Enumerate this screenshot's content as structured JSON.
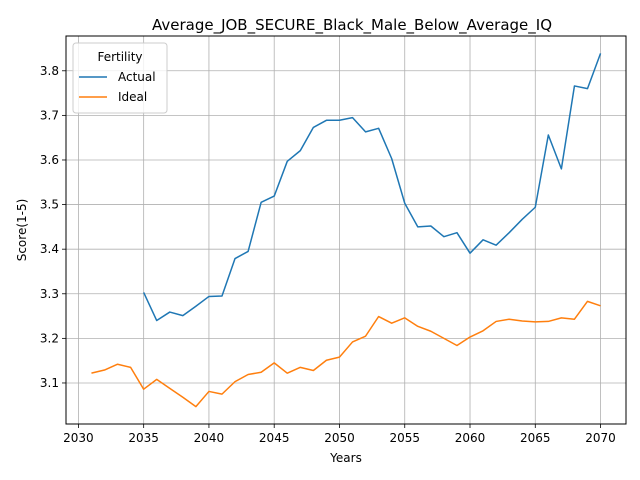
{
  "chart_data": {
    "type": "line",
    "title": "Average_JOB_SECURE_Black_Male_Below_Average_IQ",
    "xlabel": "Years",
    "ylabel": "Score(1-5)",
    "xlim": [
      2029.05,
      2071.95
    ],
    "ylim": [
      3.008,
      3.878
    ],
    "xticks": [
      2030,
      2035,
      2040,
      2045,
      2050,
      2055,
      2060,
      2065,
      2070
    ],
    "yticks": [
      3.1,
      3.2,
      3.3,
      3.4,
      3.5,
      3.6,
      3.7,
      3.8
    ],
    "grid": true,
    "legend": {
      "title": "Fertility",
      "placement": "top-left"
    },
    "series": [
      {
        "name": "Actual",
        "color": "#1f77b4",
        "x": [
          2035,
          2036,
          2037,
          2038,
          2039,
          2040,
          2041,
          2042,
          2043,
          2044,
          2045,
          2046,
          2047,
          2048,
          2049,
          2050,
          2051,
          2052,
          2053,
          2054,
          2055,
          2056,
          2057,
          2058,
          2059,
          2060,
          2061,
          2062,
          2063,
          2064,
          2065,
          2066,
          2067,
          2068,
          2069,
          2070
        ],
        "values": [
          3.303,
          3.24,
          3.259,
          3.251,
          3.272,
          3.294,
          3.295,
          3.379,
          3.395,
          3.505,
          3.519,
          3.597,
          3.621,
          3.673,
          3.689,
          3.689,
          3.695,
          3.663,
          3.671,
          3.603,
          3.503,
          3.45,
          3.452,
          3.428,
          3.437,
          3.391,
          3.421,
          3.409,
          3.437,
          3.467,
          3.494,
          3.656,
          3.58,
          3.766,
          3.76,
          3.839
        ]
      },
      {
        "name": "Ideal",
        "color": "#ff7f0e",
        "x": [
          2031,
          2032,
          2033,
          2034,
          2035,
          2036,
          2037,
          2038,
          2039,
          2040,
          2041,
          2042,
          2043,
          2044,
          2045,
          2046,
          2047,
          2048,
          2049,
          2050,
          2051,
          2052,
          2053,
          2054,
          2055,
          2056,
          2057,
          2058,
          2059,
          2060,
          2061,
          2062,
          2063,
          2064,
          2065,
          2066,
          2067,
          2068,
          2069,
          2070
        ],
        "values": [
          3.122,
          3.129,
          3.142,
          3.135,
          3.086,
          3.108,
          3.088,
          3.068,
          3.047,
          3.081,
          3.075,
          3.103,
          3.119,
          3.124,
          3.145,
          3.122,
          3.135,
          3.128,
          3.151,
          3.158,
          3.192,
          3.205,
          3.249,
          3.234,
          3.246,
          3.227,
          3.216,
          3.2,
          3.184,
          3.203,
          3.217,
          3.238,
          3.243,
          3.239,
          3.237,
          3.238,
          3.246,
          3.243,
          3.283,
          3.273
        ]
      }
    ]
  }
}
